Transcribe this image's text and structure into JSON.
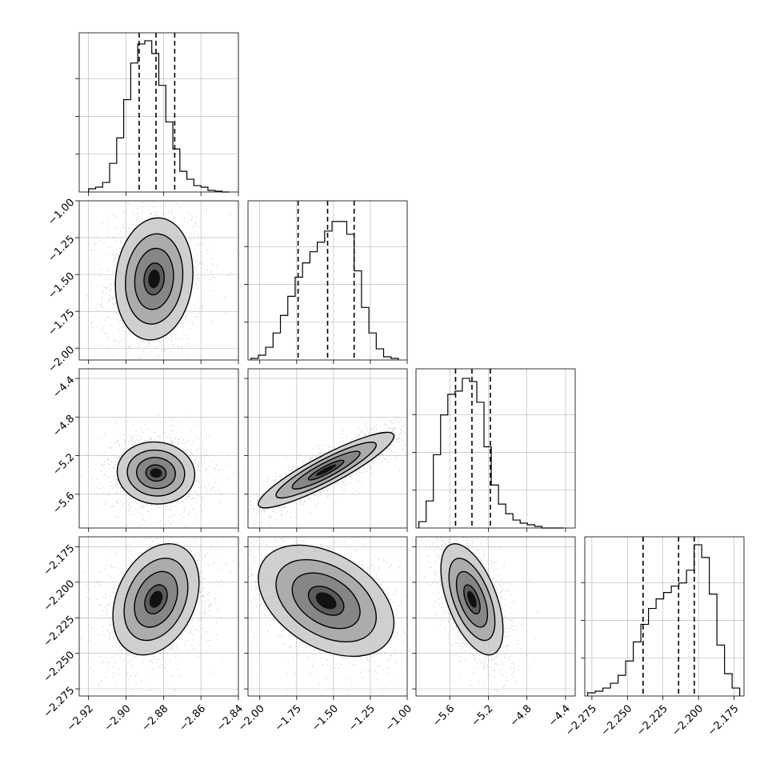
{
  "chart_data": {
    "type": "corner",
    "grid": true,
    "parameters": [
      {
        "range": [
          -2.925,
          -2.84
        ],
        "ticks": [
          -2.92,
          -2.9,
          -2.88,
          -2.86,
          -2.84
        ],
        "tick_labels": [
          "−2.92",
          "−2.90",
          "−2.88",
          "−2.86",
          "−2.84"
        ],
        "quantiles": [
          -2.893,
          -2.884,
          -2.874
        ],
        "hist_edges_range": [
          -2.92,
          -2.845
        ],
        "hist_counts": [
          0.02,
          0.03,
          0.06,
          0.18,
          0.34,
          0.58,
          0.81,
          0.93,
          0.95,
          0.87,
          0.67,
          0.44,
          0.27,
          0.13,
          0.08,
          0.04,
          0.03,
          0.01,
          0.005,
          0.0
        ]
      },
      {
        "range": [
          -2.08,
          -1.0
        ],
        "ticks": [
          -2.0,
          -1.75,
          -1.5,
          -1.25,
          -1.0
        ],
        "tick_labels": [
          "−2.00",
          "−1.75",
          "−1.50",
          "−1.25",
          "−1.00"
        ],
        "quantiles": [
          -1.74,
          -1.54,
          -1.36
        ],
        "hist_edges_range": [
          -2.06,
          -1.06
        ],
        "hist_counts": [
          0.01,
          0.03,
          0.08,
          0.17,
          0.28,
          0.4,
          0.52,
          0.61,
          0.68,
          0.74,
          0.81,
          0.87,
          0.87,
          0.79,
          0.56,
          0.33,
          0.17,
          0.07,
          0.02,
          0.01
        ]
      },
      {
        "range": [
          -5.95,
          -4.3
        ],
        "ticks": [
          -5.6,
          -5.2,
          -4.8,
          -4.4
        ],
        "tick_labels": [
          "−5.6",
          "−5.2",
          "−4.8",
          "−4.4"
        ],
        "quantiles": [
          -5.54,
          -5.37,
          -5.18
        ],
        "hist_edges_range": [
          -5.92,
          -4.42
        ],
        "hist_counts": [
          0.04,
          0.17,
          0.46,
          0.71,
          0.84,
          0.86,
          0.94,
          0.92,
          0.79,
          0.51,
          0.27,
          0.15,
          0.09,
          0.05,
          0.03,
          0.02,
          0.01,
          0.0,
          0.0,
          0.0
        ]
      },
      {
        "range": [
          -2.28,
          -2.168
        ],
        "ticks": [
          -2.275,
          -2.25,
          -2.225,
          -2.2,
          -2.175
        ],
        "tick_labels": [
          "−2.275",
          "−2.250",
          "−2.225",
          "−2.200",
          "−2.175"
        ],
        "quantiles": [
          -2.239,
          -2.214,
          -2.203
        ],
        "hist_edges_range": [
          -2.278,
          -2.171
        ],
        "hist_counts": [
          0.02,
          0.03,
          0.05,
          0.08,
          0.13,
          0.22,
          0.34,
          0.45,
          0.55,
          0.61,
          0.65,
          0.69,
          0.71,
          0.79,
          0.95,
          0.87,
          0.64,
          0.32,
          0.14,
          0.05
        ]
      }
    ],
    "pairs": [
      {
        "x": 0,
        "y": 1,
        "center": [
          -2.885,
          -1.53
        ],
        "sd": [
          0.009,
          0.18
        ],
        "rho": 0.1
      },
      {
        "x": 0,
        "y": 2,
        "center": [
          -2.884,
          -5.38
        ],
        "sd": [
          0.009,
          0.14
        ],
        "rho": -0.05
      },
      {
        "x": 1,
        "y": 2,
        "center": [
          -1.55,
          -5.35
        ],
        "sd": [
          0.2,
          0.17
        ],
        "rho": 0.9
      },
      {
        "x": 0,
        "y": 3,
        "center": [
          -2.884,
          -2.212
        ],
        "sd": [
          0.01,
          0.017
        ],
        "rho": 0.3
      },
      {
        "x": 1,
        "y": 3,
        "center": [
          -1.55,
          -2.213
        ],
        "sd": [
          0.2,
          0.017
        ],
        "rho": -0.4
      },
      {
        "x": 2,
        "y": 3,
        "center": [
          -5.37,
          -2.212
        ],
        "sd": [
          0.14,
          0.017
        ],
        "rho": -0.55
      }
    ]
  }
}
